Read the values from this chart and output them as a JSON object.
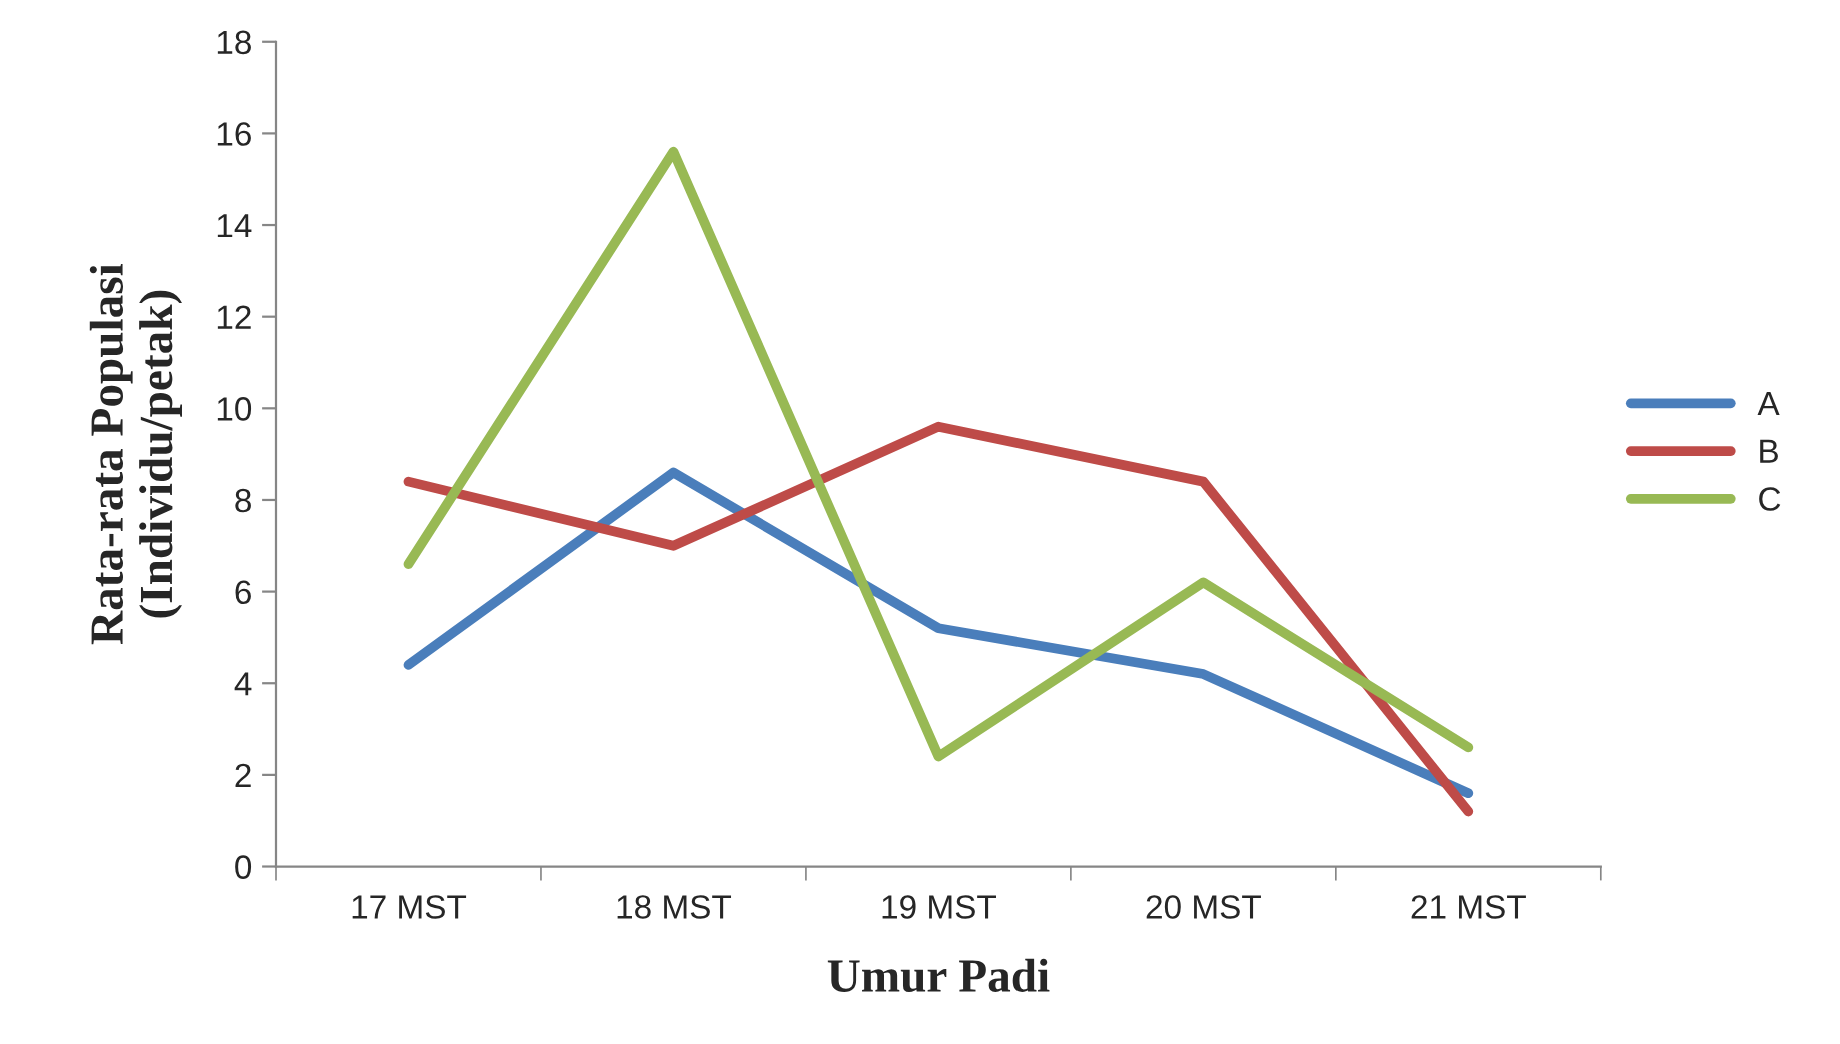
{
  "chart_data": {
    "type": "line",
    "xlabel": "Umur Padi",
    "ylabel": "Rata-rata Populasi\n(Individu/petak)",
    "categories": [
      "17 MST",
      "18 MST",
      "19 MST",
      "20 MST",
      "21 MST"
    ],
    "series": [
      {
        "name": "A",
        "color": "#4a7ebb",
        "values": [
          4.4,
          8.6,
          5.2,
          4.2,
          1.6
        ]
      },
      {
        "name": "B",
        "color": "#be4b48",
        "values": [
          8.4,
          7.0,
          9.6,
          8.4,
          1.2
        ]
      },
      {
        "name": "C",
        "color": "#98b954",
        "values": [
          6.6,
          15.6,
          2.4,
          6.2,
          2.6
        ]
      }
    ],
    "ylim": [
      0,
      18
    ],
    "yticks": [
      0,
      2,
      4,
      6,
      8,
      10,
      12,
      14,
      16,
      18
    ],
    "grid": false,
    "legend": "right",
    "marker": "none",
    "line_style": "solid"
  }
}
